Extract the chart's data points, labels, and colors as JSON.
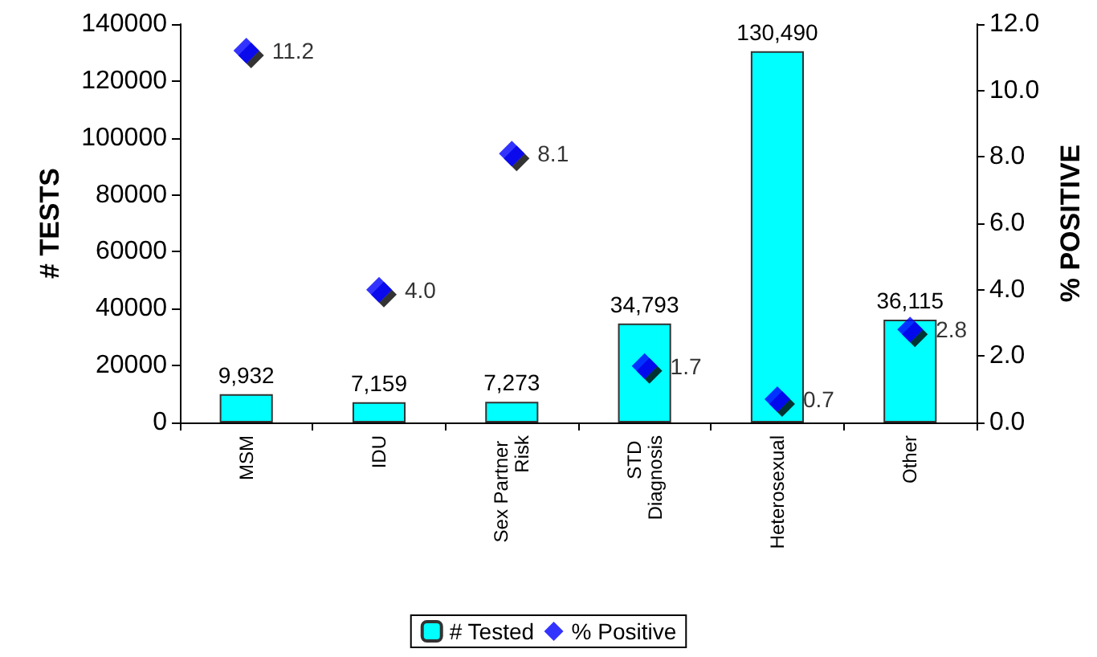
{
  "chart_data": {
    "type": "bar",
    "categories": [
      "MSM",
      "IDU",
      "Sex Partner Risk",
      "STD Diagnosis",
      "Heterosexual",
      "Other"
    ],
    "ylabel": "# TESTS",
    "y2label": "% POSITIVE",
    "ylim": [
      0,
      140000
    ],
    "yticks": [
      0,
      20000,
      40000,
      60000,
      80000,
      100000,
      120000,
      140000
    ],
    "y2lim": [
      0,
      12
    ],
    "y2ticks": [
      {
        "value": 0,
        "label": "0.0"
      },
      {
        "value": 2,
        "label": "2.0"
      },
      {
        "value": 4,
        "label": "4.0"
      },
      {
        "value": 6,
        "label": "6.0"
      },
      {
        "value": 8,
        "label": "8.0"
      },
      {
        "value": 10,
        "label": "10.0"
      },
      {
        "value": 12,
        "label": "12.0"
      }
    ],
    "series": [
      {
        "name": "# Tested",
        "color": "#00ffff",
        "values": [
          9932,
          7159,
          7273,
          34793,
          130490,
          36115
        ],
        "value_labels": [
          "9,932",
          "7,159",
          "7,273",
          "34,793",
          "130,490",
          "36,115"
        ]
      },
      {
        "name": "% Positive",
        "type": "scatter",
        "axis": "y2",
        "marker": "diamond",
        "color": "#0000ff",
        "values": [
          11.2,
          4.0,
          8.1,
          1.7,
          0.7,
          2.8
        ],
        "value_labels": [
          "11.2",
          "4.0",
          "8.1",
          "1.7",
          "0.7",
          "2.8"
        ]
      }
    ],
    "grid": false,
    "legend": "bottom"
  }
}
